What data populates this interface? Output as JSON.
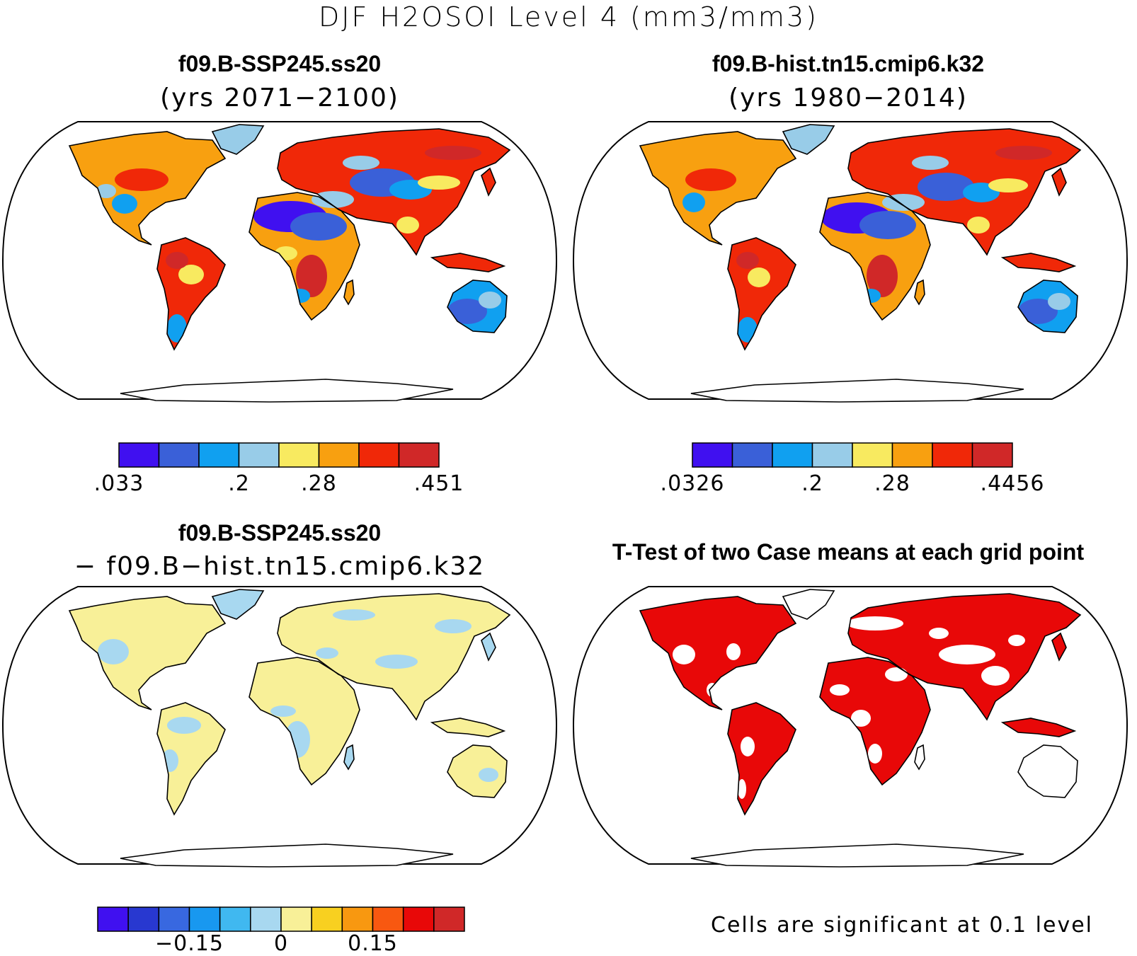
{
  "main_title": "DJF H2OSOI Level 4 (mm3/mm3)",
  "panels": [
    {
      "title": "f09.B-SSP245.ss20",
      "subtitle": "(yrs 2071−2100)",
      "variant": "future"
    },
    {
      "title": "f09.B-hist.tn15.cmip6.k32",
      "subtitle": "(yrs 1980−2014)",
      "variant": "hist"
    },
    {
      "title": "f09.B-SSP245.ss20",
      "subtitle": "− f09.B−hist.tn15.cmip6.k32",
      "variant": "diff"
    },
    {
      "title": "T-Test of two Case means at each grid point",
      "subtitle": "",
      "variant": "ttest"
    }
  ],
  "colorbars": {
    "future": {
      "colors": [
        "#4010f0",
        "#3a60d8",
        "#10a0f0",
        "#98cce8",
        "#f8ea60",
        "#f8a010",
        "#f02808",
        "#d02828"
      ],
      "ticks": [
        {
          "label": ".033",
          "pos": 0
        },
        {
          "label": ".2",
          "pos": 3
        },
        {
          "label": ".28",
          "pos": 5
        },
        {
          "label": ".451",
          "pos": 8
        }
      ]
    },
    "hist": {
      "colors": [
        "#4010f0",
        "#3a60d8",
        "#10a0f0",
        "#98cce8",
        "#f8ea60",
        "#f8a010",
        "#f02808",
        "#d02828"
      ],
      "ticks": [
        {
          "label": ".0326",
          "pos": 0
        },
        {
          "label": ".2",
          "pos": 3
        },
        {
          "label": ".28",
          "pos": 5
        },
        {
          "label": ".4456",
          "pos": 8
        }
      ]
    },
    "diff": {
      "colors": [
        "#4010f0",
        "#2838d0",
        "#3868e0",
        "#1898f0",
        "#40b8f0",
        "#a8d8f0",
        "#f8f098",
        "#f8d020",
        "#f89810",
        "#f85810",
        "#e80808",
        "#d02828"
      ],
      "ticks": [
        {
          "label": "−0.15",
          "pos": 3
        },
        {
          "label": "0",
          "pos": 6
        },
        {
          "label": "0.15",
          "pos": 9
        }
      ]
    }
  },
  "footnote": "Cells are significant at 0.1 level"
}
